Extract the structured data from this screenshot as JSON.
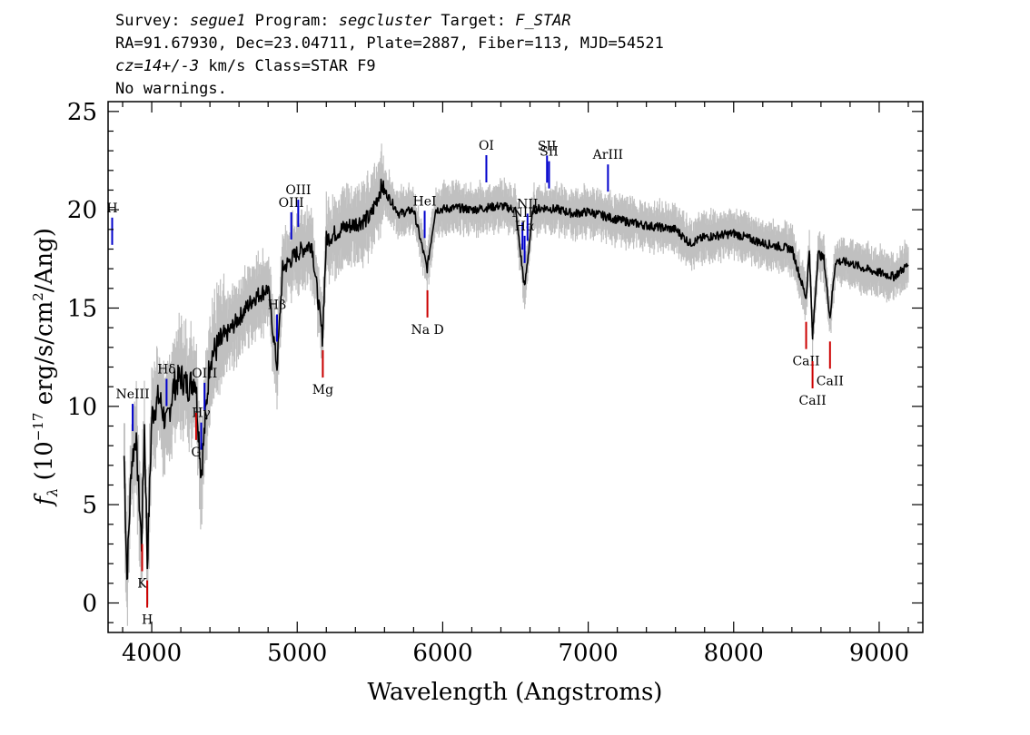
{
  "header": {
    "survey_label": "Survey:",
    "survey": "segue1",
    "program_label": "Program:",
    "program": "segcluster",
    "target_label": "Target:",
    "target": "F_STAR",
    "line2": "RA=91.67930, Dec=23.04711, Plate=2887, Fiber=113, MJD=54521",
    "cz": "cz=14+/-3",
    "line3_rest": " km/s Class=STAR F9",
    "line4": "No warnings."
  },
  "colors": {
    "flux": "#000000",
    "error_band": "#c0c0c0",
    "emission": "#0000cc",
    "absorption": "#cc0000"
  },
  "chart_data": {
    "type": "line",
    "xlabel": "Wavelength (Angstroms)",
    "ylabel_parts": [
      "f",
      "λ",
      " (10",
      "−17",
      " erg/s/cm",
      "2",
      "/Ang)"
    ],
    "xlim": [
      3700,
      9300
    ],
    "ylim": [
      -1.5,
      25.5
    ],
    "xticks": [
      4000,
      5000,
      6000,
      7000,
      8000,
      9000
    ],
    "yticks": [
      0,
      5,
      10,
      15,
      20,
      25
    ],
    "grid": false,
    "series": [
      {
        "x": [
          3810,
          3830,
          3860,
          3890,
          3930,
          3950,
          3970,
          4000,
          4050,
          4102,
          4150,
          4200,
          4250,
          4300,
          4340,
          4400,
          4500,
          4600,
          4700,
          4800,
          4861,
          4900,
          5000,
          5100,
          5173,
          5200,
          5300,
          5400,
          5500,
          5580,
          5700,
          5800,
          5893,
          5950,
          6100,
          6200,
          6300,
          6400,
          6500,
          6563,
          6620,
          6700,
          6800,
          6900,
          7000,
          7200,
          7400,
          7600,
          7700,
          7800,
          8000,
          8200,
          8400,
          8498,
          8520,
          8542,
          8580,
          8620,
          8662,
          8700,
          8800,
          8900,
          9000,
          9100,
          9200
        ],
        "y": [
          7.5,
          1.2,
          7.0,
          8.5,
          3.0,
          9.0,
          2.0,
          9.5,
          10.5,
          9.0,
          11.0,
          11.5,
          11.0,
          11.5,
          6.5,
          12.5,
          13.5,
          14.5,
          15.5,
          16.0,
          12.0,
          17.0,
          17.8,
          18.3,
          13.5,
          18.5,
          19.0,
          19.3,
          19.6,
          21.2,
          19.8,
          20.0,
          17.0,
          20.0,
          20.1,
          20.0,
          20.1,
          20.2,
          20.0,
          16.0,
          20.0,
          20.1,
          20.0,
          19.8,
          19.9,
          19.5,
          19.2,
          19.0,
          18.3,
          18.6,
          18.8,
          18.3,
          18.0,
          15.5,
          18.0,
          13.5,
          17.8,
          17.5,
          14.5,
          17.4,
          17.3,
          17.0,
          16.8,
          16.6,
          17.2
        ]
      }
    ],
    "emission_lines": [
      {
        "label": "H",
        "x": 3728
      },
      {
        "label": "NeIII",
        "x": 3869
      },
      {
        "label": "Hδ",
        "x": 4102
      },
      {
        "label": "Hγ",
        "x": 4340
      },
      {
        "label": "OIII",
        "x": 4363
      },
      {
        "label": "Hβ",
        "x": 4861
      },
      {
        "label": "OIII",
        "x": 4959
      },
      {
        "label": "OIII",
        "x": 5007
      },
      {
        "label": "HeI",
        "x": 5876
      },
      {
        "label": "OI",
        "x": 6300
      },
      {
        "label": "NII",
        "x": 6548
      },
      {
        "label": "Hα",
        "x": 6563
      },
      {
        "label": "NII",
        "x": 6583
      },
      {
        "label": "SII",
        "x": 6717
      },
      {
        "label": "SII",
        "x": 6731
      },
      {
        "label": "ArIII",
        "x": 7136
      }
    ],
    "absorption_lines": [
      {
        "label": "K",
        "x": 3934
      },
      {
        "label": "H",
        "x": 3969
      },
      {
        "label": "G",
        "x": 4305
      },
      {
        "label": "Mg",
        "x": 5176
      },
      {
        "label": "Na D",
        "x": 5895
      },
      {
        "label": "CaII",
        "x": 8498
      },
      {
        "label": "CaII",
        "x": 8542
      },
      {
        "label": "CaII",
        "x": 8662
      }
    ]
  }
}
